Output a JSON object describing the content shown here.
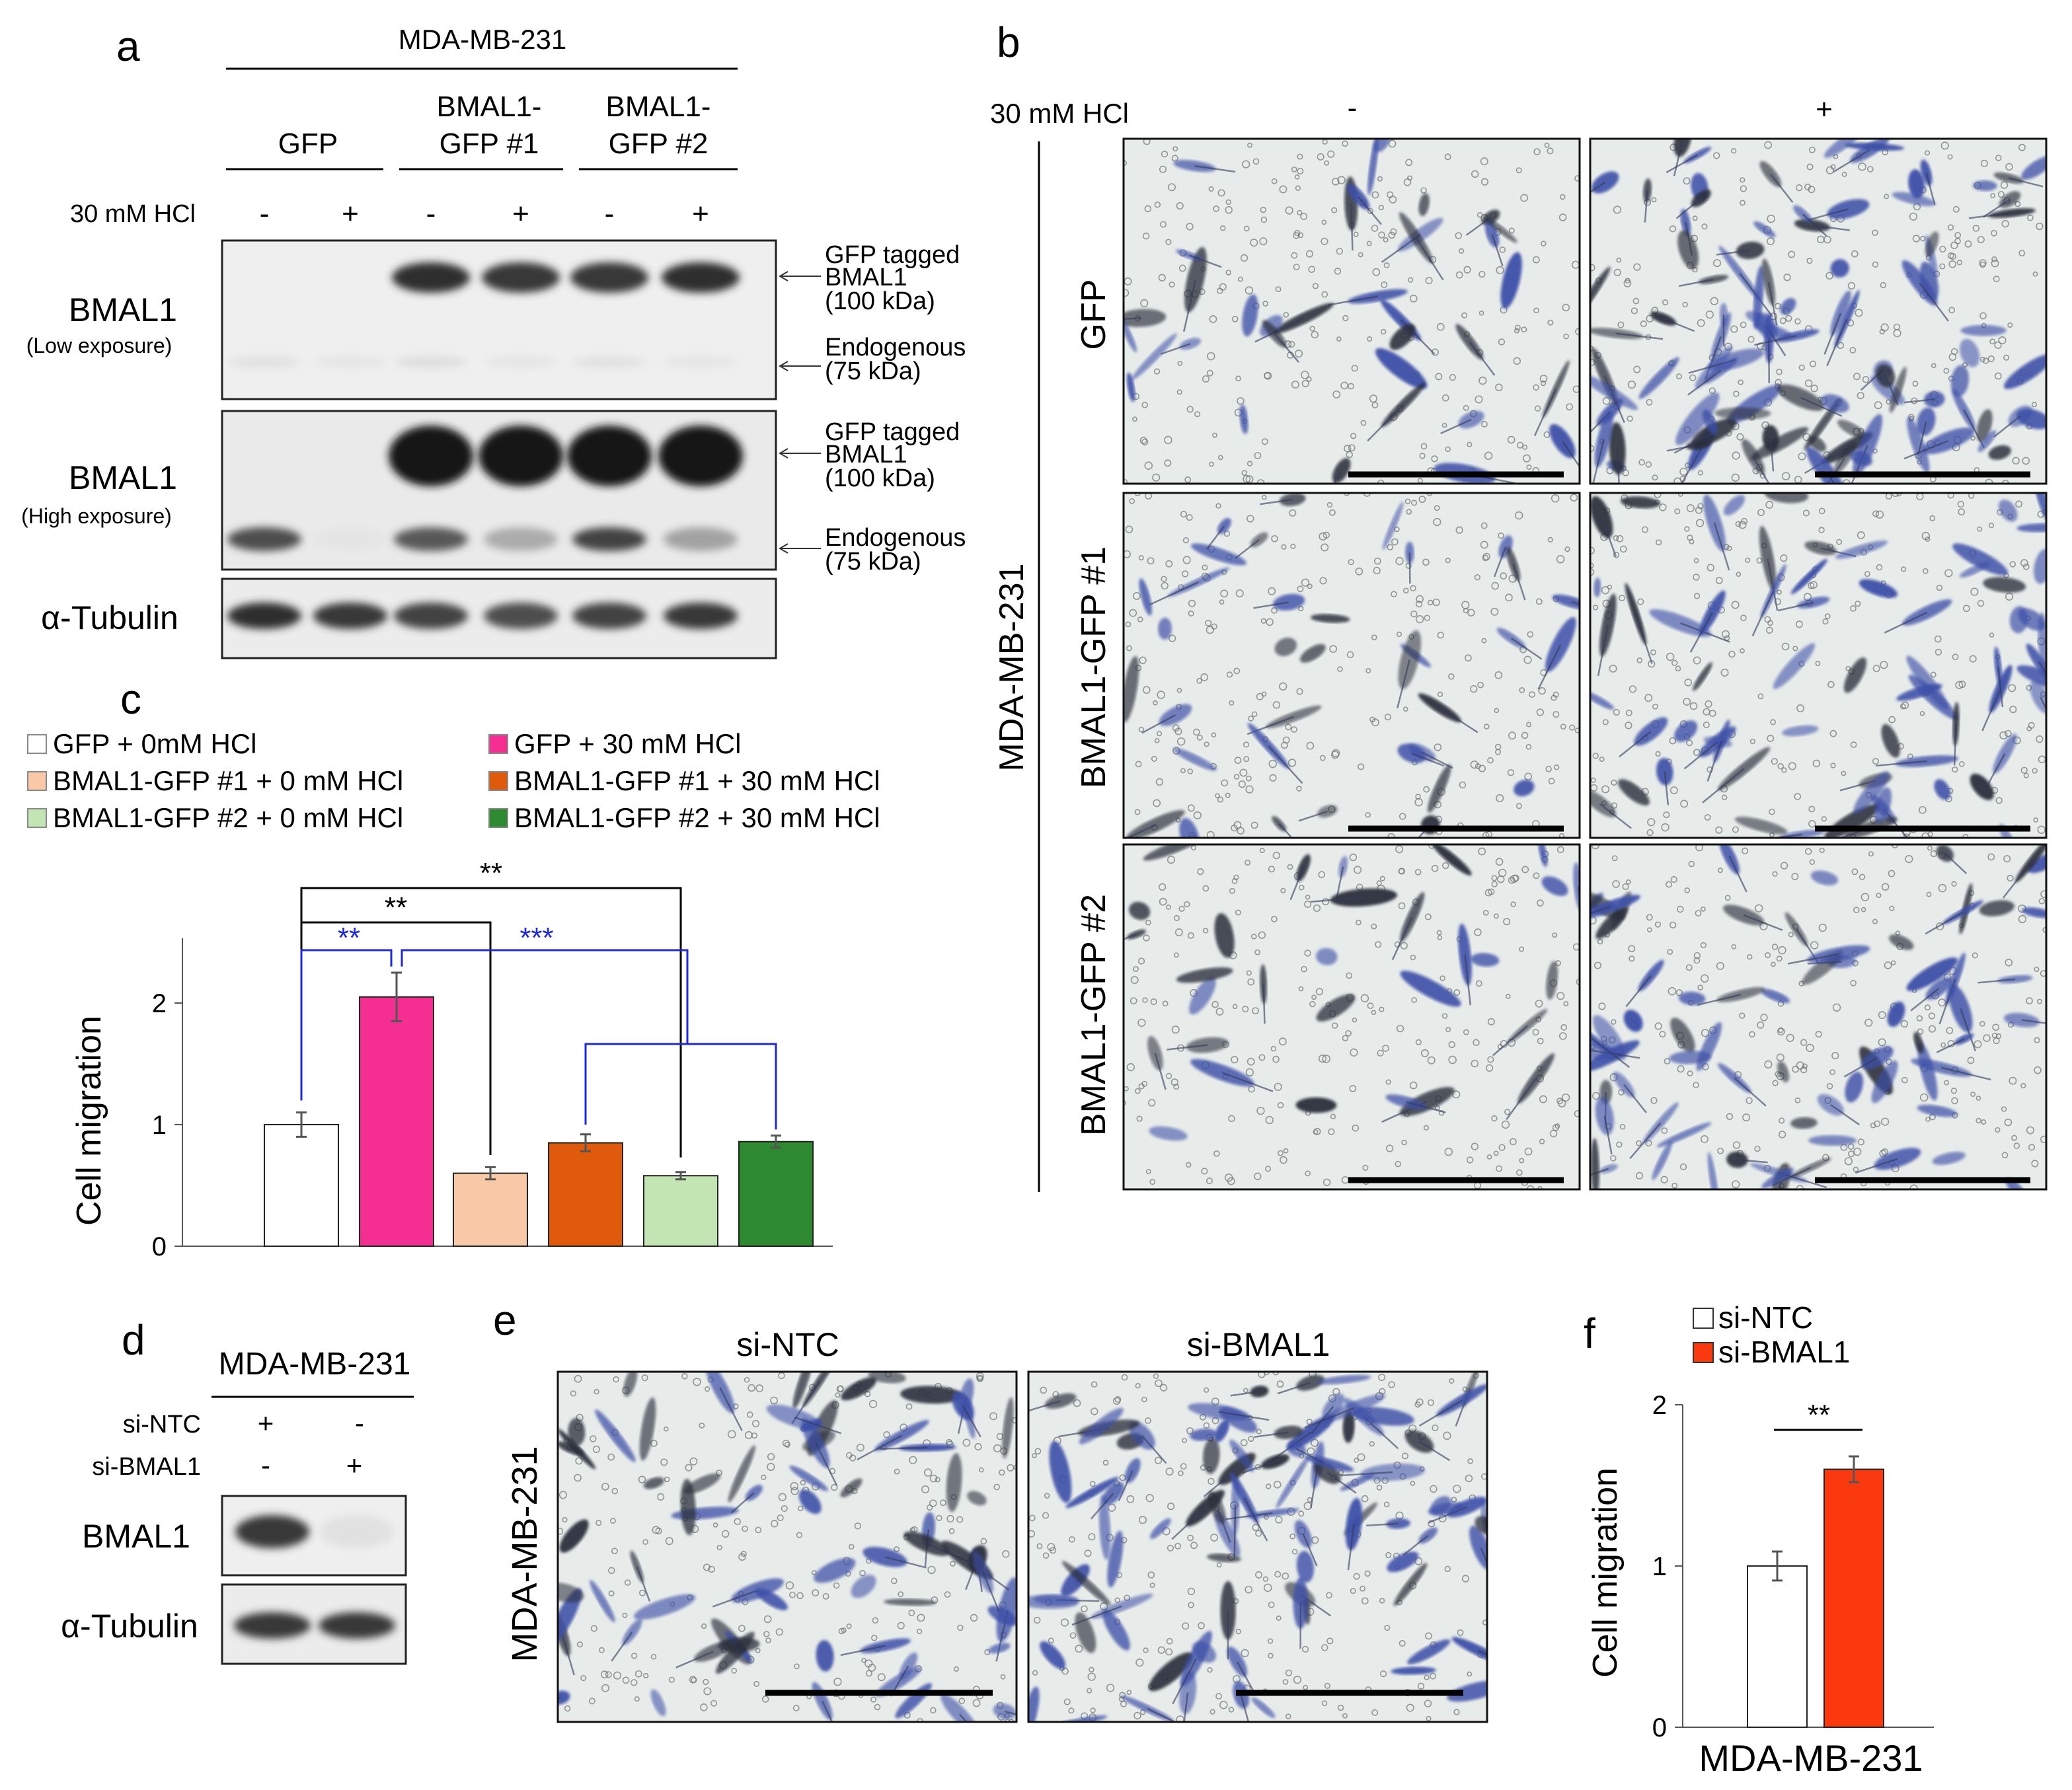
{
  "panel_letters": {
    "a": "a",
    "b": "b",
    "c": "c",
    "d": "d",
    "e": "e",
    "f": "f"
  },
  "panel_a": {
    "cell_line": "MDA-MB-231",
    "groups": [
      "GFP",
      "BMAL1-",
      "GFP #1",
      "BMAL1-",
      "GFP #2"
    ],
    "treatment_label": "30 mM HCl",
    "signs": [
      "-",
      "+",
      "-",
      "+",
      "-",
      "+"
    ],
    "blot1_label": "BMAL1",
    "blot1_sub": "(Low exposure)",
    "blot2_label": "BMAL1",
    "blot2_sub": "(High exposure)",
    "blot3_label": "α-Tubulin",
    "ann_tagged": [
      "GFP tagged",
      "BMAL1",
      "(100 kDa)"
    ],
    "ann_endo": [
      "Endogenous",
      "(75 kDa)"
    ],
    "lanes": {
      "low_tagged": [
        0,
        0,
        0.9,
        0.85,
        0.85,
        0.9
      ],
      "low_endo": [
        0.05,
        0.03,
        0.06,
        0.03,
        0.05,
        0.03
      ],
      "high_tagged": [
        0,
        0,
        1,
        1,
        1,
        1
      ],
      "high_endo": [
        0.75,
        0.03,
        0.7,
        0.3,
        0.8,
        0.35
      ],
      "tubulin": [
        0.9,
        0.85,
        0.8,
        0.75,
        0.8,
        0.85
      ]
    }
  },
  "panel_b": {
    "treatment_label": "30 mM HCl",
    "signs": [
      "-",
      "+"
    ],
    "side_label": "MDA-MB-231",
    "rows": [
      "GFP",
      "BMAL1-GFP #1",
      "BMAL1-GFP #2"
    ],
    "densities": [
      [
        0.35,
        0.95
      ],
      [
        0.35,
        0.65
      ],
      [
        0.3,
        0.7
      ]
    ]
  },
  "panel_c": {
    "chart_data": {
      "type": "bar",
      "ylabel": "Cell migration",
      "yticks": [
        "0",
        "1",
        "2"
      ],
      "ylim": [
        0,
        2.5
      ],
      "legend": [
        {
          "label": "GFP + 0mM HCl",
          "color": "#ffffff"
        },
        {
          "label": "GFP + 30 mM HCl",
          "color": "#f52e91"
        },
        {
          "label": "BMAL1-GFP #1 + 0 mM HCl",
          "color": "#f9c8a6"
        },
        {
          "label": "BMAL1-GFP #1 + 30 mM HCl",
          "color": "#e05a0c"
        },
        {
          "label": "BMAL1-GFP #2 + 0 mM HCl",
          "color": "#c3e5b3"
        },
        {
          "label": "BMAL1-GFP #2 + 30 mM HCl",
          "color": "#2e8a30"
        }
      ],
      "values": [
        1.0,
        2.05,
        0.6,
        0.85,
        0.58,
        0.86
      ],
      "errors": [
        0.1,
        0.2,
        0.05,
        0.07,
        0.03,
        0.05
      ],
      "significance": [
        "**",
        "**",
        "**",
        "***"
      ]
    }
  },
  "panel_d": {
    "cell_line": "MDA-MB-231",
    "row_labels": [
      "si-NTC",
      "si-BMAL1"
    ],
    "signs": [
      "+",
      "-",
      "-",
      "+"
    ],
    "blot1_label": "BMAL1",
    "blot2_label": "α-Tubulin",
    "lanes": {
      "bmal1": [
        0.85,
        0.05
      ],
      "tubulin": [
        0.85,
        0.85
      ]
    }
  },
  "panel_e": {
    "side_label": "MDA-MB-231",
    "columns": [
      "si-NTC",
      "si-BMAL1"
    ],
    "densities": [
      0.7,
      0.85
    ]
  },
  "panel_f": {
    "chart_data": {
      "type": "bar",
      "ylabel": "Cell migration",
      "xlabel": "MDA-MB-231",
      "yticks": [
        "0",
        "1",
        "2"
      ],
      "ylim": [
        0,
        2
      ],
      "legend": [
        {
          "label": "si-NTC",
          "color": "#ffffff"
        },
        {
          "label": "si-BMAL1",
          "color": "#fa3a0e"
        }
      ],
      "values": [
        1.0,
        1.6
      ],
      "errors": [
        0.09,
        0.08
      ],
      "significance": "**"
    }
  },
  "colors": {
    "stain": "#3d4fa8",
    "bg_micro": "#e7ebea",
    "blot_bg": "#efefef"
  }
}
